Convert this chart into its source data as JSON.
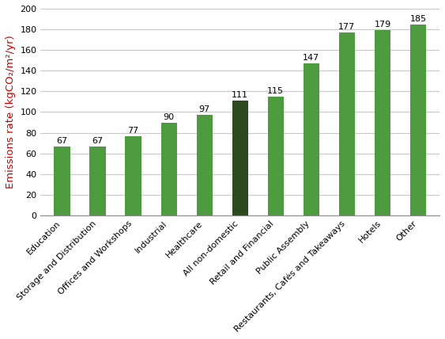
{
  "categories": [
    "Education",
    "Storage and Distribution",
    "Offices and Workshops",
    "Industrial",
    "Healthcare",
    "All non-domestic",
    "Retail and Financial",
    "Public Assembly",
    "Restaurants, Cafés and Takeaways",
    "Hotels",
    "Other"
  ],
  "values": [
    67,
    67,
    77,
    90,
    97,
    111,
    115,
    147,
    177,
    179,
    185
  ],
  "bar_colors": [
    "#4e9a3f",
    "#4e9a3f",
    "#4e9a3f",
    "#4e9a3f",
    "#4e9a3f",
    "#2d4a1e",
    "#4e9a3f",
    "#4e9a3f",
    "#4e9a3f",
    "#4e9a3f",
    "#4e9a3f"
  ],
  "ylabel": "Emissions rate (kgCO₂/m²/yr)",
  "ylabel_color": "#cc0000",
  "ylim": [
    0,
    200
  ],
  "yticks": [
    0,
    20,
    40,
    60,
    80,
    100,
    120,
    140,
    160,
    180,
    200
  ],
  "bar_width": 0.45,
  "grid_color": "#c8c8c8",
  "value_fontsize": 8.0,
  "tick_fontsize": 8.0,
  "ylabel_fontsize": 9.5,
  "background_color": "#ffffff"
}
